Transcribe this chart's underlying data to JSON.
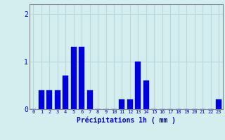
{
  "hours": [
    0,
    1,
    2,
    3,
    4,
    5,
    6,
    7,
    8,
    9,
    10,
    11,
    12,
    13,
    14,
    15,
    16,
    17,
    18,
    19,
    20,
    21,
    22,
    23
  ],
  "values": [
    0,
    0.4,
    0.4,
    0.4,
    0.7,
    1.3,
    1.3,
    0.4,
    0,
    0,
    0,
    0.2,
    0.2,
    1.0,
    0.6,
    0,
    0,
    0,
    0,
    0,
    0,
    0,
    0,
    0.2
  ],
  "bar_color": "#0000dd",
  "bar_edge_color": "#0000bb",
  "background_color": "#d4eef0",
  "grid_color": "#b8d8dc",
  "axis_color": "#888899",
  "text_color": "#0000cc",
  "xlabel": "Précipitations 1h ( mm )",
  "ylim": [
    0,
    2.2
  ],
  "yticks": [
    0,
    1,
    2
  ],
  "xlim": [
    -0.5,
    23.5
  ],
  "xlabel_fontsize": 7,
  "tick_fontsize": 5,
  "ytick_fontsize": 7
}
